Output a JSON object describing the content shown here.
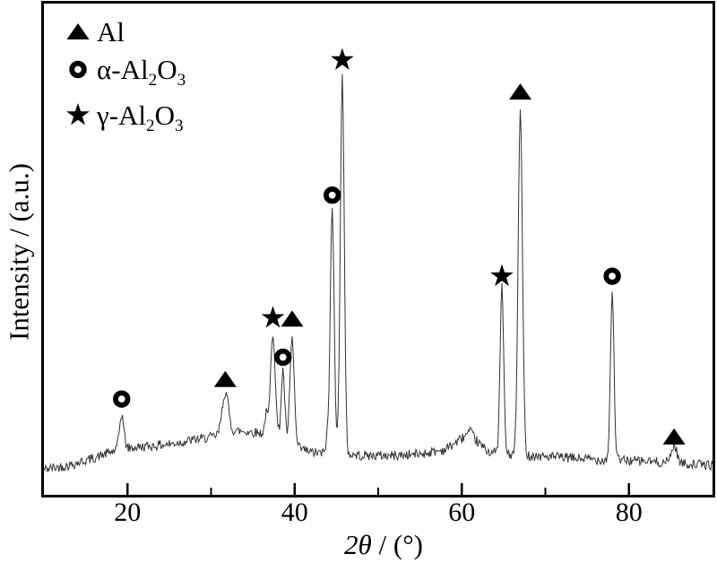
{
  "figure": {
    "xlabel_italic": "2θ",
    "xlabel_rest": " / (°)",
    "ylabel": "Intensity / (a.u.)"
  },
  "legend": {
    "position": "top-left",
    "items": [
      {
        "marker": "triangle-filled",
        "phase": "Al",
        "parts": [
          "Al",
          "",
          "",
          ""
        ]
      },
      {
        "marker": "circle-open",
        "phase": "alpha-Al2O3",
        "parts": [
          "α-Al",
          "2",
          "O",
          "3"
        ]
      },
      {
        "marker": "star-filled",
        "phase": "gamma-Al2O3",
        "parts": [
          "γ-Al",
          "2",
          "O",
          "3"
        ]
      }
    ]
  },
  "colors": {
    "trace": "#333333",
    "marker": "#000000",
    "frame": "#000000",
    "background": "#ffffff"
  },
  "chart_data": {
    "type": "line",
    "title": "",
    "xlabel": "2θ / (°)",
    "ylabel": "Intensity / (a.u.)",
    "xlim": [
      10,
      90
    ],
    "ylim": [
      0,
      100
    ],
    "x_major_ticks": [
      20,
      40,
      60,
      80
    ],
    "x_minor_ticks": [
      30,
      50,
      70
    ],
    "grid": false,
    "legend_position": "top-left",
    "sample_step": 0.1,
    "noise_amplitude": 1.0,
    "noise_seed": 42,
    "base_points": [
      [
        10,
        5.2
      ],
      [
        13,
        6.0
      ],
      [
        16,
        7.5
      ],
      [
        19,
        9.3
      ],
      [
        22,
        9.8
      ],
      [
        25,
        10.3
      ],
      [
        28,
        11.2
      ],
      [
        31,
        12.0
      ],
      [
        33,
        13.0
      ],
      [
        35,
        12.8
      ],
      [
        37,
        12.3
      ],
      [
        38.5,
        11.3
      ],
      [
        40,
        9.8
      ],
      [
        42,
        8.6
      ],
      [
        45,
        8.3
      ],
      [
        48,
        8.0
      ],
      [
        52,
        8.0
      ],
      [
        55,
        8.3
      ],
      [
        58,
        9.2
      ],
      [
        60,
        11.5
      ],
      [
        61,
        12.8
      ],
      [
        62,
        10.5
      ],
      [
        63,
        9.0
      ],
      [
        65,
        8.2
      ],
      [
        68,
        8.0
      ],
      [
        72,
        7.6
      ],
      [
        76,
        7.2
      ],
      [
        80,
        7.0
      ],
      [
        84,
        6.6
      ],
      [
        88,
        6.2
      ],
      [
        90,
        6.0
      ]
    ],
    "peaks": [
      {
        "two_theta": 19.3,
        "phase": "alpha-Al2O3",
        "marker": "circle-open",
        "height": 7.0,
        "fwhm": 0.6,
        "marker_I": 19.5
      },
      {
        "two_theta": 31.7,
        "phase": "Al",
        "marker": "triangle-filled",
        "height": 8.5,
        "fwhm": 0.9,
        "marker_I": 23.5
      },
      {
        "two_theta": 36.6,
        "height": 4.0,
        "fwhm": 0.4
      },
      {
        "two_theta": 37.4,
        "phase": "gamma-Al2O3",
        "marker": "star-filled",
        "height": 21.0,
        "fwhm": 0.65,
        "marker_I": 36.0
      },
      {
        "two_theta": 38.6,
        "phase": "alpha-Al2O3",
        "marker": "circle-open",
        "height": 14.0,
        "fwhm": 0.5,
        "marker_I": 28.0
      },
      {
        "two_theta": 39.7,
        "phase": "Al",
        "marker": "triangle-filled",
        "height": 21.5,
        "fwhm": 0.6,
        "marker_I": 35.8
      },
      {
        "two_theta": 43.9,
        "height": 3.0,
        "fwhm": 0.4
      },
      {
        "two_theta": 44.5,
        "phase": "alpha-Al2O3",
        "marker": "circle-open",
        "height": 50.0,
        "fwhm": 0.55,
        "marker_I": 61.0
      },
      {
        "two_theta": 45.7,
        "phase": "gamma-Al2O3",
        "marker": "star-filled",
        "height": 77.0,
        "fwhm": 0.55,
        "marker_I": 88.5
      },
      {
        "two_theta": 64.8,
        "phase": "gamma-Al2O3",
        "marker": "star-filled",
        "height": 34.0,
        "fwhm": 0.5,
        "marker_I": 44.5
      },
      {
        "two_theta": 67.0,
        "phase": "Al",
        "marker": "triangle-filled",
        "height": 70.0,
        "fwhm": 0.6,
        "marker_I": 82.0
      },
      {
        "two_theta": 78.0,
        "phase": "alpha-Al2O3",
        "marker": "circle-open",
        "height": 34.0,
        "fwhm": 0.5,
        "marker_I": 44.5
      },
      {
        "two_theta": 85.4,
        "phase": "Al",
        "marker": "triangle-filled",
        "height": 3.6,
        "fwhm": 0.8,
        "marker_I": 11.8
      }
    ]
  }
}
